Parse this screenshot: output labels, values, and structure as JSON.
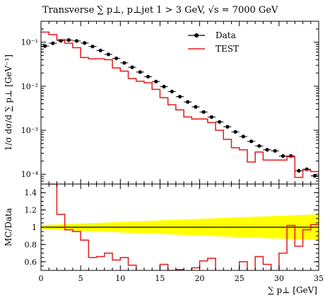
{
  "chart_data": [
    {
      "type": "scatter",
      "panel": "main",
      "title": "Transverse ∑ p⊥, p⊥jet 1 > 3 GeV, √s = 7000 GeV",
      "ylabel": "1/σ dσ/d ∑ p⊥ [GeV⁻¹]",
      "xlim": [
        0,
        35
      ],
      "ylim": [
        6e-05,
        0.3
      ],
      "yscale": "log",
      "y_tick_labels": [
        "10⁻⁴",
        "10⁻³",
        "10⁻²",
        "10⁻¹"
      ],
      "legend_position": "top-right",
      "bin_edges": [
        0,
        1,
        2,
        3,
        4,
        5,
        6,
        7,
        8,
        9,
        10,
        11,
        12,
        13,
        14,
        15,
        16,
        17,
        18,
        19,
        20,
        21,
        22,
        23,
        24,
        25,
        26,
        27,
        28,
        29,
        30,
        31,
        32,
        33,
        34,
        35
      ],
      "series": [
        {
          "name": "Data",
          "style": "points",
          "color": "#000000",
          "values": [
            0.082,
            0.095,
            0.108,
            0.112,
            0.107,
            0.096,
            0.08,
            0.065,
            0.053,
            0.043,
            0.034,
            0.027,
            0.021,
            0.0165,
            0.0128,
            0.0098,
            0.0076,
            0.0058,
            0.0044,
            0.0034,
            0.0026,
            0.002,
            0.00155,
            0.0012,
            0.00092,
            0.00072,
            0.00056,
            0.00044,
            0.00036,
            0.00034,
            0.00026,
            0.00026,
            0.00012,
            0.00013,
            9.2e-05
          ]
        },
        {
          "name": "TEST",
          "style": "step",
          "color": "#e41a1c",
          "values": [
            0.17,
            0.15,
            0.115,
            0.095,
            0.075,
            0.045,
            0.042,
            0.042,
            0.04,
            0.026,
            0.022,
            0.015,
            0.013,
            0.012,
            0.0085,
            0.0055,
            0.0038,
            0.0029,
            0.002,
            0.0018,
            0.0018,
            0.0015,
            0.001,
            0.00062,
            0.0004,
            0.00036,
            0.00019,
            0.00032,
            0.00021,
            0.00021,
            0.00021,
            0.00025,
            8.5e-05,
            0.000125,
            0.000115
          ]
        }
      ]
    },
    {
      "type": "line",
      "panel": "ratio",
      "ylabel": "MC/Data",
      "xlabel": "∑ p⊥ [GeV]",
      "xlim": [
        0,
        35
      ],
      "ylim": [
        0.5,
        1.5
      ],
      "x_ticks": [
        0,
        5,
        10,
        15,
        20,
        25,
        30,
        35
      ],
      "y_ticks": [
        0.6,
        0.8,
        1.0,
        1.2,
        1.4
      ],
      "y_tick_labels": [
        "0.6",
        "0.8",
        "1",
        "1.2",
        "1.4"
      ],
      "band_color": "#ffff00",
      "band_halfwidth_start": 0.025,
      "band_halfwidth_end": 0.15,
      "series": [
        {
          "name": "TEST",
          "style": "step",
          "color": "#e41a1c",
          "values": [
            1.55,
            1.5,
            1.15,
            0.97,
            0.95,
            0.85,
            0.65,
            0.66,
            0.7,
            0.62,
            0.65,
            0.56,
            0.44,
            0.41,
            0.45,
            0.57,
            0.5,
            0.51,
            0.46,
            0.53,
            0.61,
            0.64,
            0.47,
            0.45,
            0.47,
            0.6,
            0.45,
            0.66,
            0.57,
            0.46,
            0.7,
            1.02,
            0.78,
            0.97,
            1.03
          ]
        }
      ]
    }
  ]
}
